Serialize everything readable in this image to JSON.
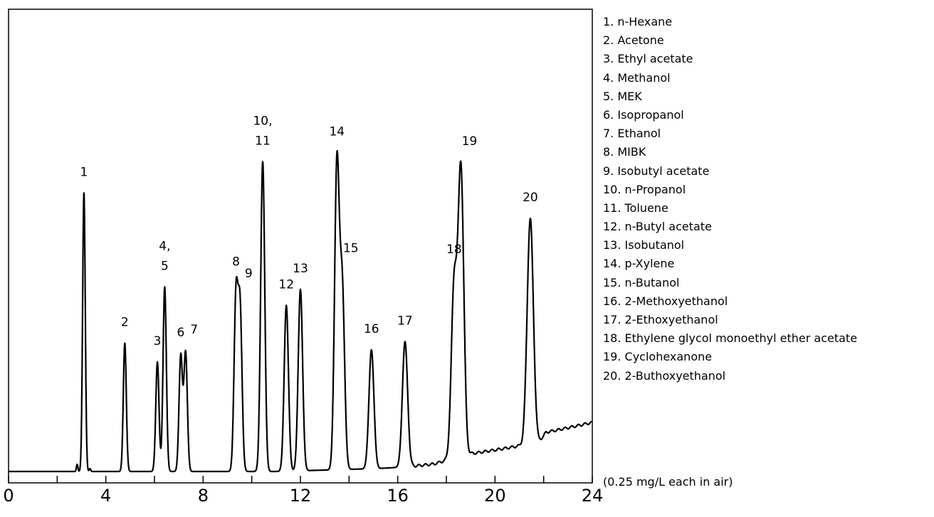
{
  "chart_data": {
    "type": "line",
    "xlim": [
      0,
      24
    ],
    "x_ticks": [
      0,
      2,
      4,
      6,
      8,
      10,
      12,
      14,
      16,
      18,
      20,
      22,
      24
    ],
    "x_tick_labels": [
      "0",
      "4",
      "8",
      "12",
      "16",
      "20",
      "24"
    ],
    "grid": false,
    "peaks": [
      {
        "label": "1",
        "x": 3.1,
        "height": 0.89
      },
      {
        "label": "2",
        "x": 4.78,
        "height": 0.41
      },
      {
        "label": "3",
        "x": 6.12,
        "height": 0.35
      },
      {
        "label": "4, 5",
        "x": 6.42,
        "height": 0.59
      },
      {
        "label": "6",
        "x": 7.08,
        "height": 0.37
      },
      {
        "label": "7",
        "x": 7.28,
        "height": 0.38
      },
      {
        "label": "8",
        "x": 9.35,
        "height": 0.55
      },
      {
        "label": "9",
        "x": 9.52,
        "height": 0.51
      },
      {
        "label": "10, 11",
        "x": 10.45,
        "height": 0.99
      },
      {
        "label": "12",
        "x": 11.42,
        "height": 0.53
      },
      {
        "label": "13",
        "x": 12.0,
        "height": 0.58
      },
      {
        "label": "14",
        "x": 13.5,
        "height": 0.97
      },
      {
        "label": "15",
        "x": 13.72,
        "height": 0.57
      },
      {
        "label": "16",
        "x": 14.92,
        "height": 0.38
      },
      {
        "label": "17",
        "x": 16.3,
        "height": 0.4
      },
      {
        "label": "18",
        "x": 18.32,
        "height": 0.55
      },
      {
        "label": "19",
        "x": 18.6,
        "height": 0.91
      },
      {
        "label": "20",
        "x": 21.45,
        "height": 0.72
      }
    ],
    "legend": [
      "1. n-Hexane",
      "2. Acetone",
      "3. Ethyl acetate",
      "4. Methanol",
      "5. MEK",
      "6. Isopropanol",
      "7. Ethanol",
      "8. MIBK",
      "9. Isobutyl acetate",
      "10. n-Propanol",
      "11. Toluene",
      "12. n-Butyl acetate",
      "13. Isobutanol",
      "14. p-Xylene",
      "15. n-Butanol",
      "16. 2-Methoxyethanol",
      "17. 2-Ethoxyethanol",
      "18. Ethylene glycol monoethyl ether acetate",
      "19. Cyclohexanone",
      "20. 2-Buthoxyethanol"
    ],
    "note": "(0.25 mg/L each in air)",
    "legend_position": "right"
  }
}
